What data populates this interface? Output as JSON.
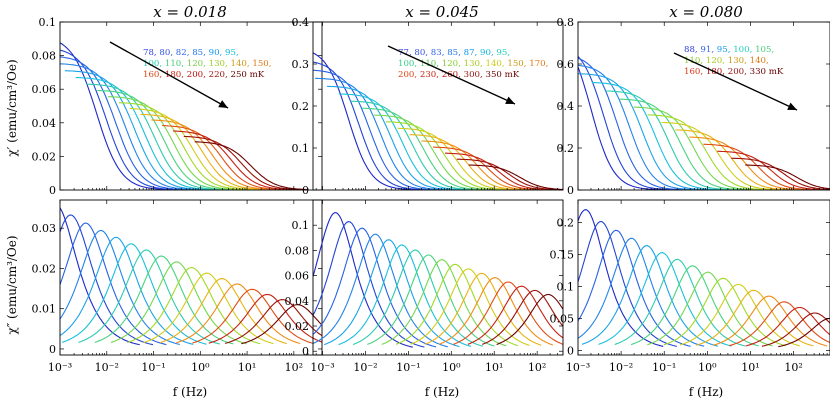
{
  "figure": {
    "xaxis_label": "f (Hz)",
    "ylabel_top": "χ′ (emu/cm³/Oe)",
    "ylabel_bottom": "χ″ (emu/cm³/Oe)"
  },
  "chart_data": [
    {
      "panel": "x=0.018 chi-prime",
      "type": "line",
      "title": "x = 0.018",
      "xscale": "log",
      "xlim": [
        0.001,
        400
      ],
      "ylim": [
        0,
        0.1
      ],
      "yticks": [
        0,
        0.02,
        0.04,
        0.06,
        0.08,
        0.1
      ],
      "ytick_labels": [
        "0",
        "0.02",
        "0.04",
        "0.06",
        "0.08",
        "0.1"
      ],
      "temperatures_mK": [
        78,
        80,
        82,
        85,
        90,
        95,
        100,
        110,
        120,
        130,
        140,
        150,
        160,
        180,
        200,
        220,
        250
      ],
      "legend_lines": [
        [
          {
            "text": "78,",
            "color": "#3344dd"
          },
          {
            "text": " 80,",
            "color": "#3355dd"
          },
          {
            "text": " 82,",
            "color": "#3366ee"
          },
          {
            "text": " 85,",
            "color": "#2277ee"
          },
          {
            "text": " 90,",
            "color": "#1199ee"
          },
          {
            "text": " 95,",
            "color": "#11bbdd"
          }
        ],
        [
          {
            "text": "100,",
            "color": "#22ccaa"
          },
          {
            "text": " 110,",
            "color": "#44cc77"
          },
          {
            "text": " 120,",
            "color": "#77cc44"
          },
          {
            "text": " 130,",
            "color": "#99cc22"
          },
          {
            "text": " 140,",
            "color": "#cc9911"
          },
          {
            "text": " 150,",
            "color": "#dd7711"
          }
        ],
        [
          {
            "text": "160,",
            "color": "#dd4411"
          },
          {
            "text": " 180,",
            "color": "#cc2211"
          },
          {
            "text": " 200,",
            "color": "#bb1111"
          },
          {
            "text": " 220,",
            "color": "#991111"
          },
          {
            "text": " 250 mK",
            "color": "#660000"
          }
        ]
      ],
      "model": {
        "kind": "real",
        "y0": 0.092,
        "y1": 0.029,
        "fc0": 0.006,
        "fc1": 12,
        "beta": 0.55
      }
    },
    {
      "panel": "x=0.045 chi-prime",
      "type": "line",
      "title": "x = 0.045",
      "xscale": "log",
      "xlim": [
        0.0006,
        400
      ],
      "ylim": [
        0,
        0.4
      ],
      "yticks": [
        0,
        0.1,
        0.2,
        0.3,
        0.4
      ],
      "ytick_labels": [
        "0",
        "0.1",
        "0.2",
        "0.3",
        "0.4"
      ],
      "temperatures_mK": [
        77,
        80,
        83,
        85,
        87,
        90,
        95,
        100,
        110,
        120,
        130,
        140,
        150,
        170,
        200,
        230,
        260,
        300,
        350
      ],
      "legend_lines": [
        [
          {
            "text": "77,",
            "color": "#3344dd"
          },
          {
            "text": " 80,",
            "color": "#3355dd"
          },
          {
            "text": " 83,",
            "color": "#3366ee"
          },
          {
            "text": " 85,",
            "color": "#2277ee"
          },
          {
            "text": " 87,",
            "color": "#1199ee"
          },
          {
            "text": " 90,",
            "color": "#11bbdd"
          },
          {
            "text": " 95,",
            "color": "#22ccbb"
          }
        ],
        [
          {
            "text": "100,",
            "color": "#33cc88"
          },
          {
            "text": " 110,",
            "color": "#55cc55"
          },
          {
            "text": " 120,",
            "color": "#88cc33"
          },
          {
            "text": " 130,",
            "color": "#aacc22"
          },
          {
            "text": " 140,",
            "color": "#cccc11"
          },
          {
            "text": " 150,",
            "color": "#cc9911"
          },
          {
            "text": " 170,",
            "color": "#dd7711"
          }
        ],
        [
          {
            "text": "200,",
            "color": "#dd4411"
          },
          {
            "text": " 230,",
            "color": "#cc2211"
          },
          {
            "text": " 260,",
            "color": "#bb1111"
          },
          {
            "text": " 300,",
            "color": "#991111"
          },
          {
            "text": " 350 mK",
            "color": "#660000"
          }
        ]
      ],
      "model": {
        "kind": "real",
        "y0": 0.34,
        "y1": 0.06,
        "fc0": 0.004,
        "fc1": 40,
        "beta": 0.55
      }
    },
    {
      "panel": "x=0.080 chi-prime",
      "type": "line",
      "title": "x = 0.080",
      "xscale": "log",
      "xlim": [
        0.001,
        700
      ],
      "ylim": [
        0,
        0.8
      ],
      "yticks": [
        0,
        0.2,
        0.4,
        0.6,
        0.8
      ],
      "ytick_labels": [
        "0",
        "0.2",
        "0.4",
        "0.6",
        "0.8"
      ],
      "temperatures_mK": [
        88,
        91,
        95,
        100,
        105,
        110,
        120,
        130,
        140,
        160,
        180,
        200,
        330
      ],
      "legend_lines": [
        [
          {
            "text": "88,",
            "color": "#3344dd"
          },
          {
            "text": " 91,",
            "color": "#3366ee"
          },
          {
            "text": " 95,",
            "color": "#1199ee"
          },
          {
            "text": " 100,",
            "color": "#22ccbb"
          },
          {
            "text": " 105,",
            "color": "#44cc77"
          }
        ],
        [
          {
            "text": "110,",
            "color": "#88cc33"
          },
          {
            "text": " 120,",
            "color": "#aacc22"
          },
          {
            "text": " 130,",
            "color": "#cc9911"
          },
          {
            "text": " 140,",
            "color": "#dd7711"
          }
        ],
        [
          {
            "text": "160,",
            "color": "#dd3311"
          },
          {
            "text": " 180,",
            "color": "#bb1111"
          },
          {
            "text": " 200,",
            "color": "#991111"
          },
          {
            "text": " 330 mK",
            "color": "#660000"
          }
        ]
      ],
      "model": {
        "kind": "real",
        "y0": 0.77,
        "y1": 0.12,
        "fc0": 0.002,
        "fc1": 120,
        "beta": 0.55
      }
    },
    {
      "panel": "x=0.018 chi-double-prime",
      "type": "line",
      "xscale": "log",
      "xlim": [
        0.001,
        400
      ],
      "ylim": [
        -0.0015,
        0.037
      ],
      "yticks": [
        0,
        0.01,
        0.02,
        0.03
      ],
      "ytick_labels": [
        "0",
        "0.01",
        "0.02",
        "0.03"
      ],
      "xtick_labels": [
        "10⁻³",
        "10⁻²",
        "10⁻¹",
        "10⁰",
        "10¹",
        "10²"
      ],
      "model": {
        "kind": "imag",
        "y0": 0.036,
        "y1": 0.011,
        "fc0": 0.0008,
        "fc1": 120,
        "beta": 0.6
      }
    },
    {
      "panel": "x=0.045 chi-double-prime",
      "type": "line",
      "xscale": "log",
      "xlim": [
        0.0006,
        400
      ],
      "ylim": [
        -0.003,
        0.12
      ],
      "yticks": [
        0,
        0.02,
        0.04,
        0.06,
        0.08,
        0.1
      ],
      "ytick_labels": [
        "0",
        "0.02",
        "0.04",
        "0.06",
        "0.08",
        "0.1"
      ],
      "xtick_labels": [
        "10⁻³",
        "10⁻²",
        "10⁻¹",
        "10⁰",
        "10¹",
        "10²"
      ],
      "model": {
        "kind": "imag",
        "y0": 0.11,
        "y1": 0.045,
        "fc0": 0.002,
        "fc1": 180,
        "beta": 0.6
      }
    },
    {
      "panel": "x=0.080 chi-double-prime",
      "type": "line",
      "xscale": "log",
      "xlim": [
        0.001,
        700
      ],
      "ylim": [
        -0.007,
        0.235
      ],
      "yticks": [
        0,
        0.05,
        0.1,
        0.15,
        0.2
      ],
      "ytick_labels": [
        "0",
        "0.05",
        "0.1",
        "0.15",
        "0.2"
      ],
      "xtick_labels": [
        "10⁻³",
        "10⁻²",
        "10⁻¹",
        "10⁰",
        "10¹",
        "10²"
      ],
      "model": {
        "kind": "imag",
        "y0": 0.22,
        "y1": 0.05,
        "fc0": 0.0015,
        "fc1": 700,
        "beta": 0.6
      }
    }
  ]
}
